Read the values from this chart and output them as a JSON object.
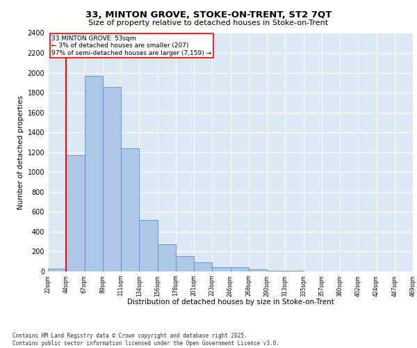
{
  "title1": "33, MINTON GROVE, STOKE-ON-TRENT, ST2 7QT",
  "title2": "Size of property relative to detached houses in Stoke-on-Trent",
  "xlabel": "Distribution of detached houses by size in Stoke-on-Trent",
  "ylabel": "Number of detached properties",
  "bar_values": [
    30,
    1170,
    1970,
    1860,
    1240,
    520,
    275,
    155,
    90,
    45,
    42,
    20,
    10,
    5,
    3,
    2,
    2,
    2,
    2
  ],
  "bin_labels": [
    "22sqm",
    "44sqm",
    "67sqm",
    "89sqm",
    "111sqm",
    "134sqm",
    "156sqm",
    "178sqm",
    "201sqm",
    "223sqm",
    "246sqm",
    "268sqm",
    "290sqm",
    "313sqm",
    "335sqm",
    "357sqm",
    "380sqm",
    "402sqm",
    "424sqm",
    "447sqm",
    "469sqm"
  ],
  "bar_color": "#aec6e8",
  "bar_edge_color": "#5a8fc2",
  "annotation_box_text": "33 MINTON GROVE: 53sqm\n← 3% of detached houses are smaller (207)\n97% of semi-detached houses are larger (7,159) →",
  "red_line_bin_index": 1,
  "background_color": "#dde8f5",
  "grid_color": "#ffffff",
  "footer_text": "Contains HM Land Registry data © Crown copyright and database right 2025.\nContains public sector information licensed under the Open Government Licence v3.0.",
  "ylim": [
    0,
    2400
  ],
  "yticks": [
    0,
    200,
    400,
    600,
    800,
    1000,
    1200,
    1400,
    1600,
    1800,
    2000,
    2200,
    2400
  ]
}
